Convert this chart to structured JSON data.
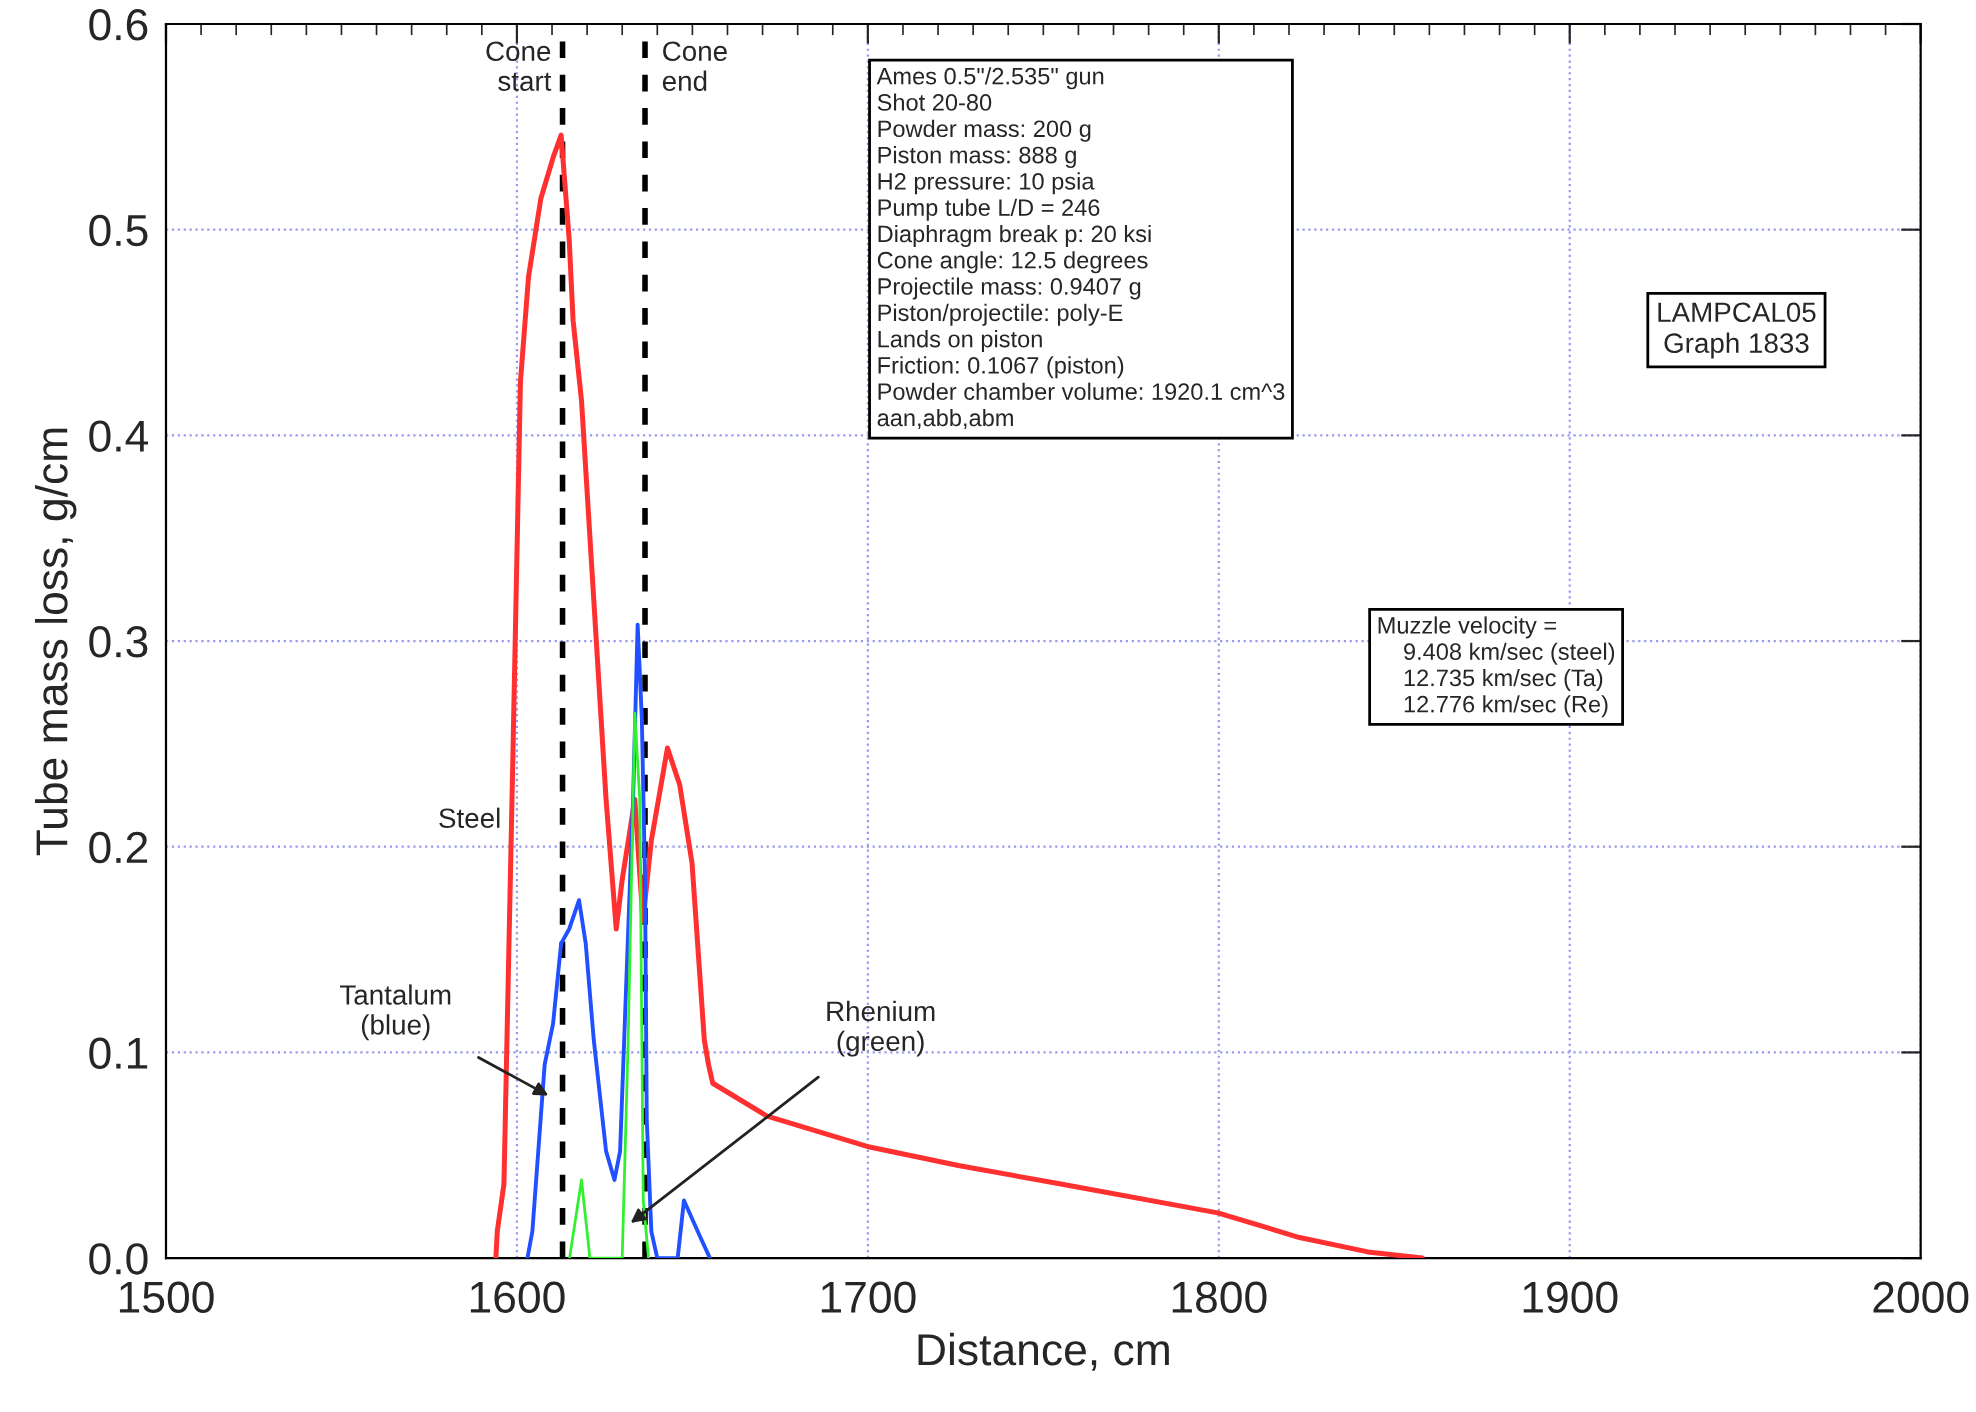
{
  "chart_data": {
    "type": "line",
    "xlabel": "Distance, cm",
    "ylabel": "Tube mass loss, g/cm",
    "xlim": [
      1500,
      2000
    ],
    "xticks": [
      1500,
      1600,
      1700,
      1800,
      1900,
      2000
    ],
    "ylim": [
      0,
      0.6
    ],
    "yticks": [
      {
        "value": 0,
        "label": "0.0"
      },
      0.1,
      0.2,
      0.3,
      0.4,
      0.5,
      0.6
    ],
    "grid": true,
    "marker": "none",
    "line_style": "solid",
    "series": [
      {
        "color": "#ff3030",
        "x": [
          1594,
          1594.4,
          1596.3,
          1598.6,
          1601,
          1603.3,
          1606.8,
          1610.3,
          1612.6,
          1614.9,
          1616,
          1618.4,
          1621.9,
          1625.4,
          1628.3,
          1630,
          1633.6,
          1635.9,
          1638.3,
          1642.9,
          1646.4,
          1649.9,
          1653.4,
          1654.6,
          1655.8,
          1671.3,
          1700.5,
          1725.8,
          1755,
          1799.7,
          1823,
          1842.5,
          1858
        ],
        "values": [
          0,
          0.013,
          0.036,
          0.223,
          0.426,
          0.477,
          0.515,
          0.535,
          0.546,
          0.495,
          0.456,
          0.417,
          0.32,
          0.223,
          0.16,
          0.184,
          0.223,
          0.164,
          0.203,
          0.248,
          0.23,
          0.192,
          0.106,
          0.094,
          0.085,
          0.069,
          0.054,
          0.045,
          0.036,
          0.022,
          0.01,
          0.003,
          0
        ]
      },
      {
        "color": "#2050ff",
        "x": [
          1603,
          1604.4,
          1607.9,
          1610.3,
          1612.6,
          1614.9,
          1617.7,
          1619.6,
          1621.9,
          1625.4,
          1627.8,
          1629.4,
          1631.4,
          1633.1,
          1634.4,
          1635.6,
          1636.5,
          1637,
          1638.3,
          1640,
          1645.8,
          1647.6,
          1652.3,
          1655
        ],
        "values": [
          0,
          0.013,
          0.094,
          0.114,
          0.153,
          0.16,
          0.174,
          0.153,
          0.106,
          0.052,
          0.038,
          0.052,
          0.145,
          0.223,
          0.308,
          0.262,
          0.184,
          0.067,
          0.013,
          0,
          0,
          0.028,
          0.01,
          0
        ]
      },
      {
        "color": "#30f030",
        "x": [
          1615,
          1618.4,
          1620.8,
          1630,
          1631.7,
          1633.6,
          1635,
          1636,
          1637.5
        ],
        "values": [
          0,
          0.038,
          0,
          0,
          0.106,
          0.265,
          0.223,
          0.028,
          0
        ]
      }
    ],
    "ref_lines": [
      {
        "axis": "x",
        "value": 1613,
        "label": "Cone\nstart",
        "color": "#000000",
        "line_style": "dashed"
      },
      {
        "axis": "x",
        "value": 1636.5,
        "label": "Cone\nend",
        "color": "#000000",
        "line_style": "dashed"
      }
    ],
    "annotations": [
      "Steel",
      {
        "text": "Tantalum\n(blue)",
        "x": 1609,
        "y": 0.079
      },
      {
        "text": "Rhenium\n(green)",
        "x": 1632.4,
        "y": 0.017
      },
      "Ames 0.5\"/2.535\" gun\nShot 20-80\nPowder mass: 200 g\nPiston mass: 888 g\nH2 pressure: 10 psia\nPump tube L/D = 246\nDiaphragm break p: 20 ksi\nCone angle: 12.5 degrees\nProjectile mass: 0.9407 g\nPiston/projectile: poly-E\nLands on piston\nFriction: 0.1067 (piston)\nPowder chamber volume: 1920.1 cm^3\naan,abb,abm",
      "LAMPCAL05\nGraph 1833",
      "Muzzle velocity =\n    9.408 km/sec (steel)\n    12.735 km/sec (Ta)\n    12.776 km/sec (Re)"
    ]
  }
}
